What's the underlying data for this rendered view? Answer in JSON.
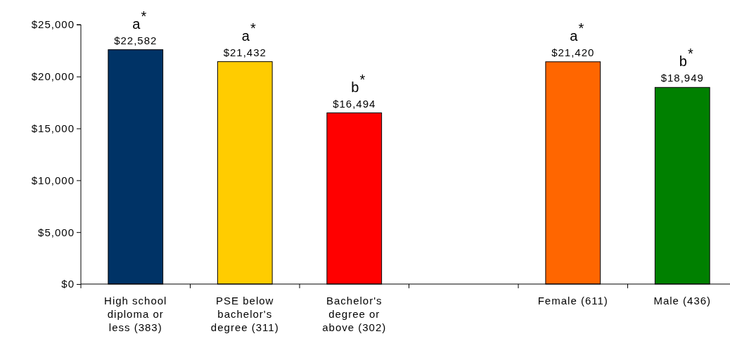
{
  "chart_data": {
    "type": "bar",
    "categories": [
      "High school diploma or less (383)",
      "PSE below bachelor's degree (311)",
      "Bachelor's degree or above (302)",
      null,
      "Female (611)",
      "Male (436)"
    ],
    "values": [
      22582,
      21432,
      16494,
      null,
      21420,
      18949
    ],
    "colors": [
      "#003366",
      "#ffcc00",
      "#ff0000",
      null,
      "#ff6600",
      "#008000"
    ],
    "value_labels": [
      "$22,582",
      "$21,432",
      "$16,494",
      null,
      "$21,420",
      "$18,949"
    ],
    "ylim": [
      0,
      25000
    ],
    "yticks": [
      {
        "value": 0,
        "label": "$0"
      },
      {
        "value": 5000,
        "label": "$5,000"
      },
      {
        "value": 10000,
        "label": "$10,000"
      },
      {
        "value": 15000,
        "label": "$15,000"
      },
      {
        "value": 20000,
        "label": "$20,000"
      },
      {
        "value": 25000,
        "label": "$25,000"
      }
    ],
    "grid": false,
    "annotations": [
      {
        "text": "a$^{*}$",
        "x": "High school diploma or less (383)",
        "y": 22582
      },
      {
        "text": "a$^{*}$",
        "x": "PSE below bachelor's degree (311)",
        "y": 21432
      },
      {
        "text": "b$^{*}$",
        "x": "Bachelor's degree or above (302)",
        "y": 16494
      },
      {
        "text": "a$^{*}$",
        "x": "Female (611)",
        "y": 21420
      },
      {
        "text": "b$^{*}$",
        "x": "Male (436)",
        "y": 18949
      }
    ]
  }
}
